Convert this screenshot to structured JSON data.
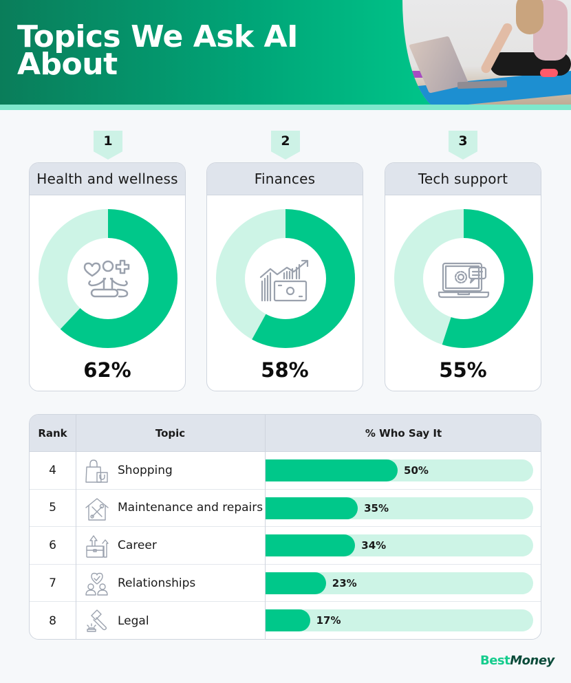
{
  "header": {
    "title": "Topics We Ask AI About"
  },
  "top_topics": [
    {
      "rank": "1",
      "topic": "Health and wellness",
      "percent": 62,
      "percent_label": "62%",
      "icon": "meditation-wellness-icon"
    },
    {
      "rank": "2",
      "topic": "Finances",
      "percent": 58,
      "percent_label": "58%",
      "icon": "finance-growth-money-icon"
    },
    {
      "rank": "3",
      "topic": "Tech support",
      "percent": 55,
      "percent_label": "55%",
      "icon": "laptop-settings-chat-icon"
    }
  ],
  "table": {
    "headers": {
      "rank": "Rank",
      "topic": "Topic",
      "percent": "% Who Say It"
    },
    "rows": [
      {
        "rank": "4",
        "topic": "Shopping",
        "percent": 50,
        "percent_label": "50%",
        "icon": "shopping-bags-icon"
      },
      {
        "rank": "5",
        "topic": "Maintenance and repairs",
        "percent": 35,
        "percent_label": "35%",
        "icon": "house-tools-icon"
      },
      {
        "rank": "6",
        "topic": "Career",
        "percent": 34,
        "percent_label": "34%",
        "icon": "briefcase-growth-icon"
      },
      {
        "rank": "7",
        "topic": "Relationships",
        "percent": 23,
        "percent_label": "23%",
        "icon": "couple-heart-icon"
      },
      {
        "rank": "8",
        "topic": "Legal",
        "percent": 17,
        "percent_label": "17%",
        "icon": "gavel-icon"
      }
    ]
  },
  "logo": {
    "best": "Best",
    "money": "Money"
  },
  "colors": {
    "accent": "#00c88a",
    "accent_light": "#cdf4e6",
    "header_dark": "#0a7d5a",
    "panel_header": "#dfe4ec",
    "logo_dark": "#0b4b3a"
  },
  "chart_data": [
    {
      "type": "pie",
      "title": "Topics We Ask AI About — Top 3",
      "categories": [
        "Health and wellness",
        "Finances",
        "Tech support"
      ],
      "values": [
        62,
        58,
        55
      ],
      "unit": "%",
      "style": "donut"
    },
    {
      "type": "bar",
      "orientation": "horizontal",
      "title": "% Who Say It",
      "categories": [
        "Shopping",
        "Maintenance and repairs",
        "Career",
        "Relationships",
        "Legal"
      ],
      "ranks": [
        4,
        5,
        6,
        7,
        8
      ],
      "values": [
        50,
        35,
        34,
        23,
        17
      ],
      "unit": "%",
      "xlim": [
        0,
        100
      ],
      "grid": false
    }
  ]
}
